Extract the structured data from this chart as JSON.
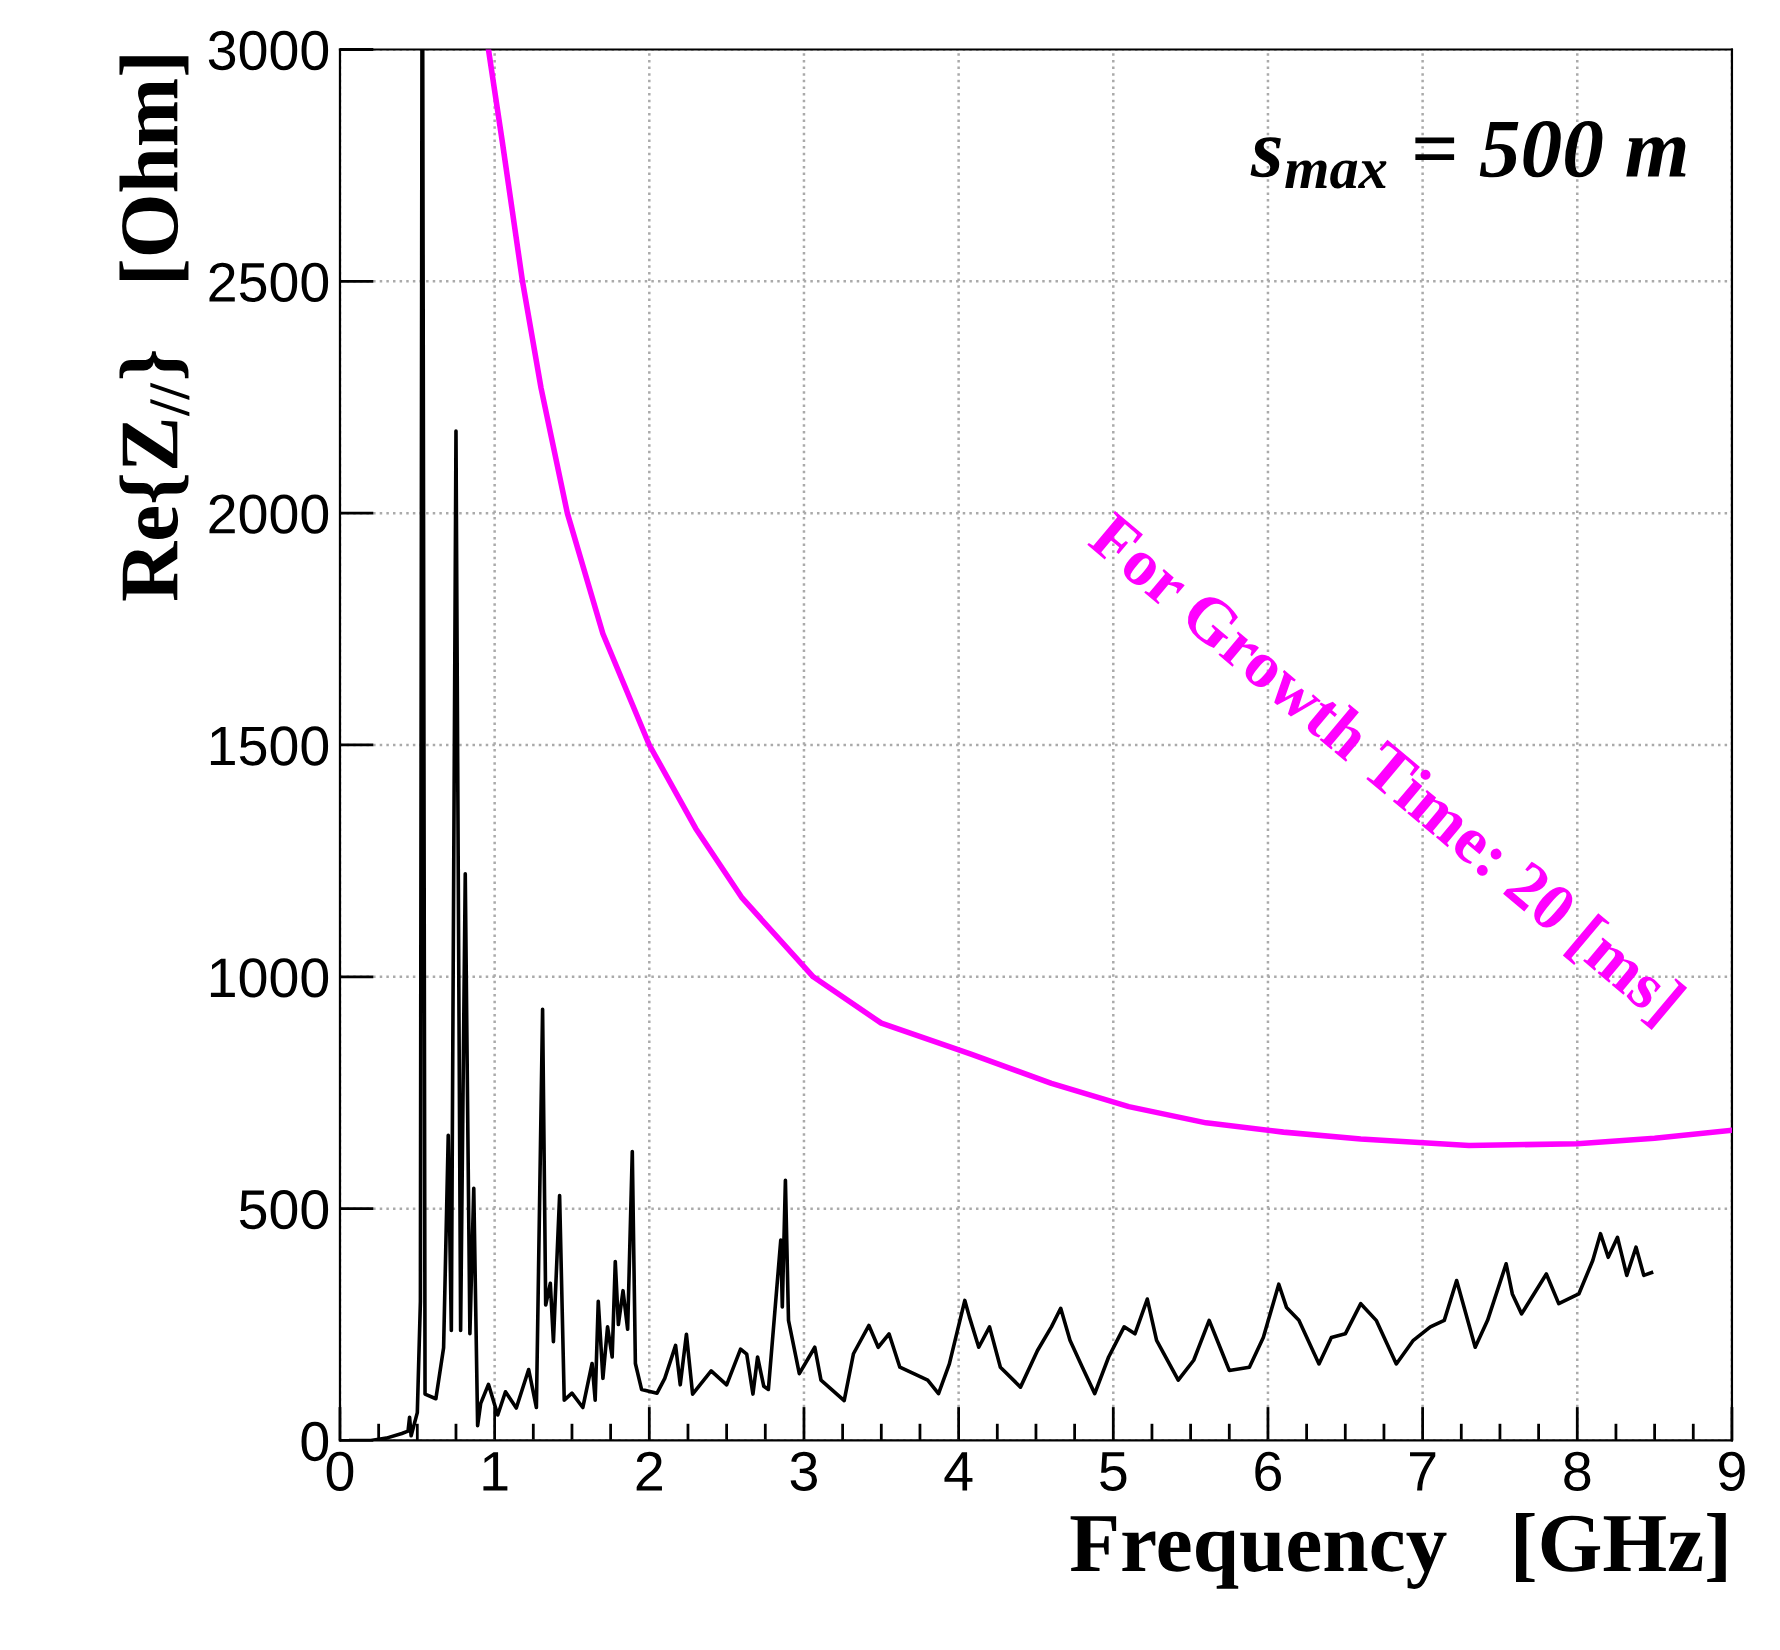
{
  "chart_data": {
    "type": "line",
    "xlabel": "Frequency   [GHz]",
    "ylabel": "Re{Z$_{//}$}   [Ohm]",
    "annotations": [
      "s$_{max}$ = 500 m"
    ],
    "xlim": [
      0,
      9
    ],
    "xticks": [
      0,
      1,
      2,
      3,
      4,
      5,
      6,
      7,
      8,
      9
    ],
    "ylim": [
      0,
      3000
    ],
    "yticks": [
      0,
      500,
      1000,
      1500,
      2000,
      2500,
      3000
    ],
    "grid": true,
    "legend": false,
    "line_style": "solid",
    "marker": "none",
    "series": [
      {
        "color": "#000000",
        "x": [
          0.07,
          0.2,
          0.3,
          0.4,
          0.44,
          0.45,
          0.46,
          0.5,
          0.52,
          0.53,
          0.535,
          0.55,
          0.62,
          0.67,
          0.7,
          0.72,
          0.75,
          0.78,
          0.81,
          0.84,
          0.865,
          0.89,
          0.91,
          0.96,
          1.02,
          1.07,
          1.14,
          1.22,
          1.27,
          1.31,
          1.33,
          1.36,
          1.38,
          1.42,
          1.45,
          1.5,
          1.57,
          1.63,
          1.65,
          1.67,
          1.7,
          1.73,
          1.76,
          1.78,
          1.8,
          1.83,
          1.86,
          1.89,
          1.91,
          1.95,
          2.05,
          2.1,
          2.17,
          2.2,
          2.24,
          2.28,
          2.4,
          2.5,
          2.59,
          2.63,
          2.67,
          2.7,
          2.74,
          2.77,
          2.85,
          2.86,
          2.88,
          2.9,
          2.97,
          3.07,
          3.11,
          3.26,
          3.32,
          3.42,
          3.48,
          3.55,
          3.62,
          3.8,
          3.87,
          3.94,
          4.04,
          4.07,
          4.13,
          4.2,
          4.27,
          4.4,
          4.51,
          4.6,
          4.66,
          4.72,
          4.8,
          4.88,
          4.97,
          5.07,
          5.14,
          5.22,
          5.28,
          5.42,
          5.52,
          5.62,
          5.69,
          5.75,
          5.88,
          5.97,
          6.07,
          6.12,
          6.2,
          6.33,
          6.41,
          6.5,
          6.6,
          6.7,
          6.83,
          6.94,
          7.05,
          7.14,
          7.22,
          7.34,
          7.42,
          7.54,
          7.58,
          7.64,
          7.8,
          7.88,
          8.01,
          8.1,
          8.15,
          8.2,
          8.26,
          8.32,
          8.38,
          8.43,
          8.48
        ],
        "values": [
          0,
          0,
          5,
          15,
          20,
          50,
          10,
          60,
          300,
          3000,
          3000,
          100,
          90,
          200,
          658,
          237,
          2177,
          237,
          1222,
          230,
          544,
          32,
          80,
          121,
          55,
          105,
          70,
          153,
          71,
          930,
          292,
          339,
          213,
          528,
          87,
          102,
          71,
          166,
          87,
          300,
          134,
          245,
          180,
          386,
          250,
          323,
          240,
          623,
          166,
          110,
          102,
          134,
          205,
          120,
          229,
          100,
          150,
          120,
          197,
          186,
          100,
          180,
          117,
          110,
          432,
          288,
          561,
          259,
          144,
          201,
          130,
          86,
          187,
          248,
          201,
          230,
          158,
          130,
          101,
          165,
          302,
          266,
          201,
          245,
          158,
          115,
          194,
          245,
          285,
          216,
          158,
          101,
          180,
          245,
          230,
          305,
          216,
          130,
          173,
          259,
          201,
          151,
          158,
          222,
          337,
          287,
          259,
          165,
          222,
          230,
          295,
          259,
          165,
          216,
          245,
          259,
          345,
          201,
          259,
          381,
          316,
          273,
          359,
          295,
          316,
          388,
          446,
          395,
          438,
          356,
          417,
          356,
          362
        ]
      },
      {
        "name": "For Growth Time: 20 [ms]",
        "color": "#ff00ff",
        "x": [
          0.96,
          1.05,
          1.18,
          1.3,
          1.47,
          1.7,
          2.0,
          2.3,
          2.6,
          3.06,
          3.5,
          4.08,
          4.6,
          5.1,
          5.6,
          6.1,
          6.6,
          7.3,
          8.0,
          8.5,
          9.0
        ],
        "values": [
          3000,
          2800,
          2500,
          2270,
          2000,
          1740,
          1500,
          1320,
          1170,
          1000,
          900,
          833,
          770,
          720,
          685,
          665,
          650,
          636,
          640,
          652,
          669
        ]
      }
    ]
  }
}
